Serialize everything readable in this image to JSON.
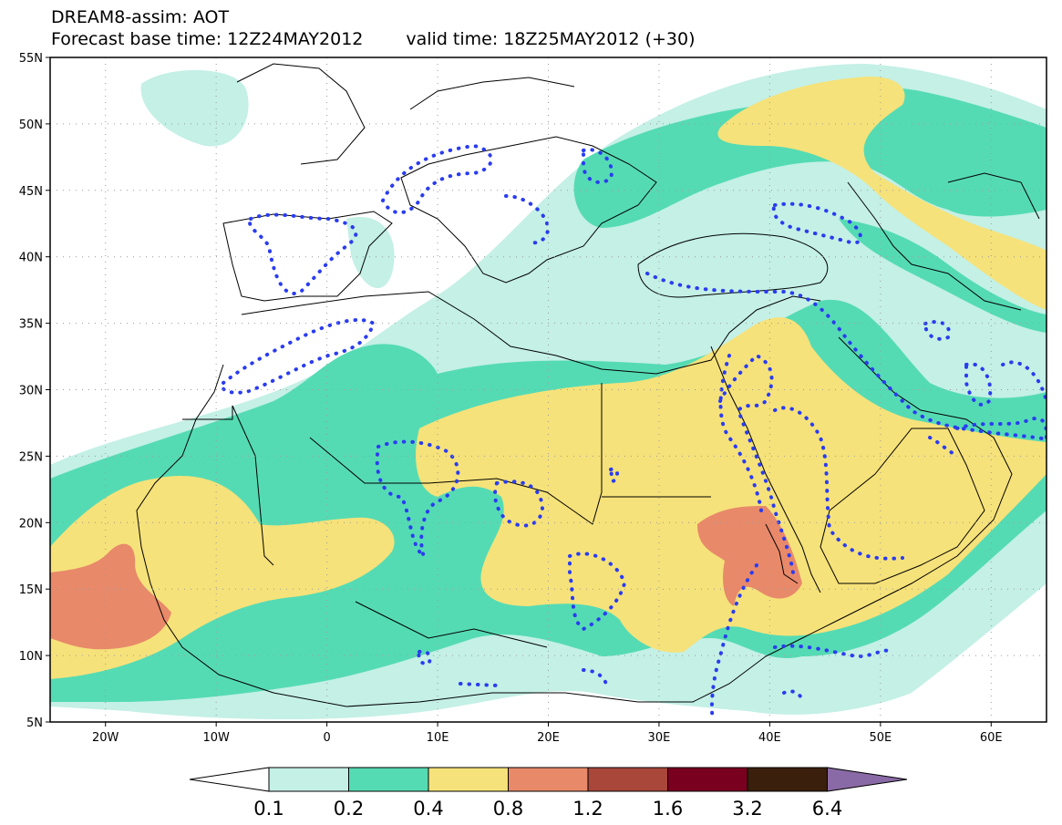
{
  "title": {
    "line1": "DREAM8-assim: AOT",
    "line2_base": "Forecast base time: 12Z24MAY2012",
    "line2_valid": "valid time: 18Z25MAY2012 (+30)"
  },
  "axes": {
    "lat_labels": [
      "55N",
      "50N",
      "45N",
      "40N",
      "35N",
      "30N",
      "25N",
      "20N",
      "15N",
      "10N",
      "5N"
    ],
    "lon_labels": [
      "20W",
      "10W",
      "0",
      "10E",
      "20E",
      "30E",
      "40E",
      "50E",
      "60E"
    ],
    "lat_range": [
      5,
      55
    ],
    "lon_range": [
      -25,
      65
    ]
  },
  "colorbar": {
    "labels": [
      "0.1",
      "0.2",
      "0.4",
      "0.8",
      "1.2",
      "1.6",
      "3.2",
      "6.4"
    ],
    "colors": [
      "#ffffff",
      "#c4f0e6",
      "#55dbb4",
      "#f6e27a",
      "#e8896a",
      "#a8473a",
      "#7a0020",
      "#3a200c",
      "#8a6aa6"
    ]
  },
  "colors": {
    "ocean": "#ffffff",
    "level_0_1": "#c4f0e6",
    "level_0_2": "#55dbb4",
    "level_0_4": "#f6e27a",
    "level_0_8": "#e8896a",
    "observation_contour": "#2a3cf0",
    "border": "#000000"
  }
}
